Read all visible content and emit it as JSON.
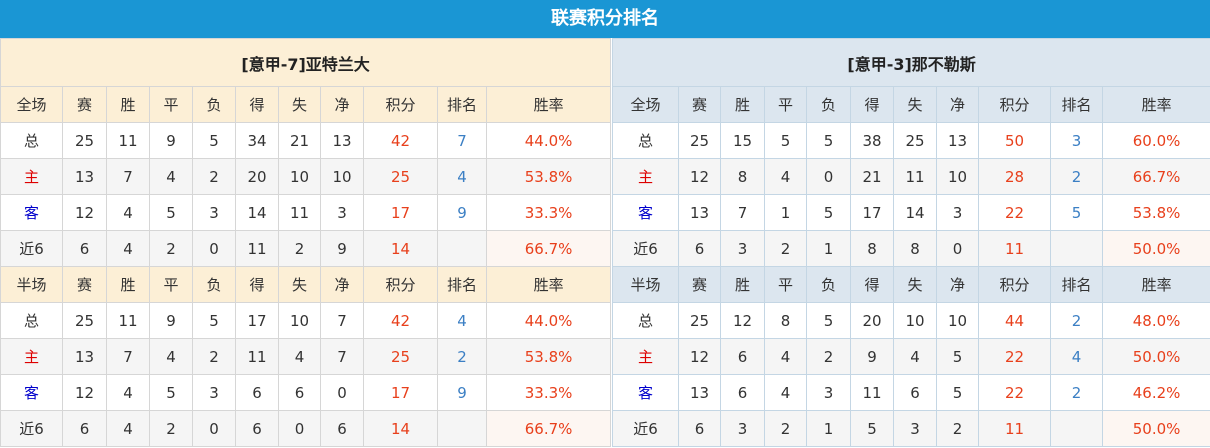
{
  "title": "联赛积分排名",
  "columns": [
    "赛",
    "胜",
    "平",
    "负",
    "得",
    "失",
    "净",
    "积分",
    "排名",
    "胜率"
  ],
  "teams": [
    {
      "name": "[意甲-7]亚特兰大",
      "sections": [
        {
          "label": "全场",
          "rows": [
            {
              "label": "总",
              "type": "total",
              "values": [
                "25",
                "11",
                "9",
                "5",
                "34",
                "21",
                "13",
                "42",
                "7",
                "44.0%"
              ]
            },
            {
              "label": "主",
              "type": "home",
              "values": [
                "13",
                "7",
                "4",
                "2",
                "20",
                "10",
                "10",
                "25",
                "4",
                "53.8%"
              ]
            },
            {
              "label": "客",
              "type": "away",
              "values": [
                "12",
                "4",
                "5",
                "3",
                "14",
                "11",
                "3",
                "17",
                "9",
                "33.3%"
              ]
            },
            {
              "label": "近6",
              "type": "recent",
              "values": [
                "6",
                "4",
                "2",
                "0",
                "11",
                "2",
                "9",
                "14",
                "",
                "66.7%"
              ]
            }
          ]
        },
        {
          "label": "半场",
          "rows": [
            {
              "label": "总",
              "type": "total",
              "values": [
                "25",
                "11",
                "9",
                "5",
                "17",
                "10",
                "7",
                "42",
                "4",
                "44.0%"
              ]
            },
            {
              "label": "主",
              "type": "home",
              "values": [
                "13",
                "7",
                "4",
                "2",
                "11",
                "4",
                "7",
                "25",
                "2",
                "53.8%"
              ]
            },
            {
              "label": "客",
              "type": "away",
              "values": [
                "12",
                "4",
                "5",
                "3",
                "6",
                "6",
                "0",
                "17",
                "9",
                "33.3%"
              ]
            },
            {
              "label": "近6",
              "type": "recent",
              "values": [
                "6",
                "4",
                "2",
                "0",
                "6",
                "0",
                "6",
                "14",
                "",
                "66.7%"
              ]
            }
          ]
        }
      ]
    },
    {
      "name": "[意甲-3]那不勒斯",
      "sections": [
        {
          "label": "全场",
          "rows": [
            {
              "label": "总",
              "type": "total",
              "values": [
                "25",
                "15",
                "5",
                "5",
                "38",
                "25",
                "13",
                "50",
                "3",
                "60.0%"
              ]
            },
            {
              "label": "主",
              "type": "home",
              "values": [
                "12",
                "8",
                "4",
                "0",
                "21",
                "11",
                "10",
                "28",
                "2",
                "66.7%"
              ]
            },
            {
              "label": "客",
              "type": "away",
              "values": [
                "13",
                "7",
                "1",
                "5",
                "17",
                "14",
                "3",
                "22",
                "5",
                "53.8%"
              ]
            },
            {
              "label": "近6",
              "type": "recent",
              "values": [
                "6",
                "3",
                "2",
                "1",
                "8",
                "8",
                "0",
                "11",
                "",
                "50.0%"
              ]
            }
          ]
        },
        {
          "label": "半场",
          "rows": [
            {
              "label": "总",
              "type": "total",
              "values": [
                "25",
                "12",
                "8",
                "5",
                "20",
                "10",
                "10",
                "44",
                "2",
                "48.0%"
              ]
            },
            {
              "label": "主",
              "type": "home",
              "values": [
                "12",
                "6",
                "4",
                "2",
                "9",
                "4",
                "5",
                "22",
                "4",
                "50.0%"
              ]
            },
            {
              "label": "客",
              "type": "away",
              "values": [
                "13",
                "6",
                "4",
                "3",
                "11",
                "6",
                "5",
                "22",
                "2",
                "46.2%"
              ]
            },
            {
              "label": "近6",
              "type": "recent",
              "values": [
                "6",
                "3",
                "2",
                "1",
                "5",
                "3",
                "2",
                "11",
                "",
                "50.0%"
              ]
            }
          ]
        }
      ]
    }
  ]
}
